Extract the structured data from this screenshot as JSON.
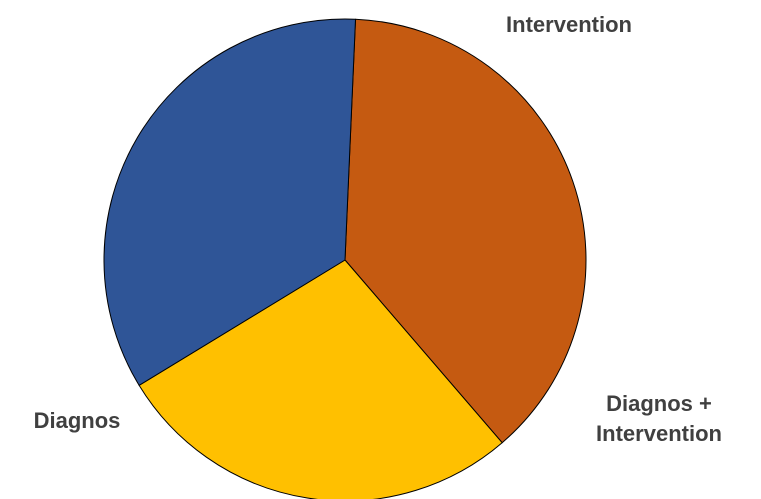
{
  "chart_data": {
    "type": "pie",
    "title": "",
    "slices": [
      {
        "label": "Intervention",
        "value": 38.0,
        "color": "#C55A11"
      },
      {
        "label": "Diagnos + Intervention",
        "value": 27.6,
        "color": "#FFC000"
      },
      {
        "label": "Diagnos",
        "value": 34.4,
        "color": "#2F5597"
      }
    ],
    "labels": {
      "intervention": [
        "Intervention"
      ],
      "diagnos": [
        "Diagnos"
      ],
      "diagnos_intervention": [
        "Diagnos +",
        "Intervention"
      ]
    },
    "start_angle_deg": 87.5,
    "direction": "clockwise",
    "legend": "none"
  }
}
